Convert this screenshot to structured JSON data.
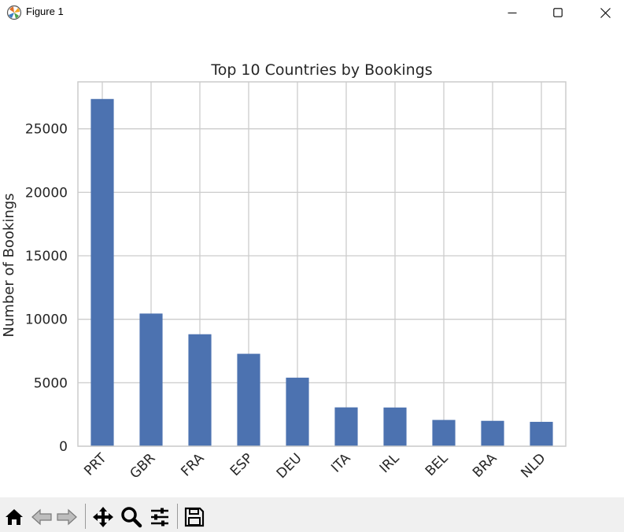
{
  "window": {
    "title": "Figure 1",
    "controls": [
      "minimize",
      "maximize",
      "close"
    ],
    "icon": "matplotlib-icon"
  },
  "toolbar": {
    "buttons": [
      "home-icon",
      "back-arrow-icon",
      "forward-arrow-icon",
      "pan-icon",
      "zoom-icon",
      "configure-subplots-icon",
      "save-icon"
    ]
  },
  "chart_data": {
    "type": "bar",
    "title": "Top 10 Countries by Bookings",
    "xlabel": "",
    "ylabel": "Number of Bookings",
    "categories": [
      "PRT",
      "GBR",
      "FRA",
      "ESP",
      "DEU",
      "ITA",
      "IRL",
      "BEL",
      "BRA",
      "NLD"
    ],
    "values": [
      27350,
      10450,
      8820,
      7280,
      5400,
      3060,
      3050,
      2070,
      2000,
      1920
    ],
    "ylim": [
      0,
      28700
    ],
    "yticks": [
      0,
      5000,
      10000,
      15000,
      20000,
      25000
    ],
    "ytick_labels": [
      "0",
      "5000",
      "10000",
      "15000",
      "20000",
      "25000"
    ],
    "grid": true,
    "bar_color": "#4c72b0",
    "grid_color": "#cccccc",
    "xtick_rotation": 45
  }
}
